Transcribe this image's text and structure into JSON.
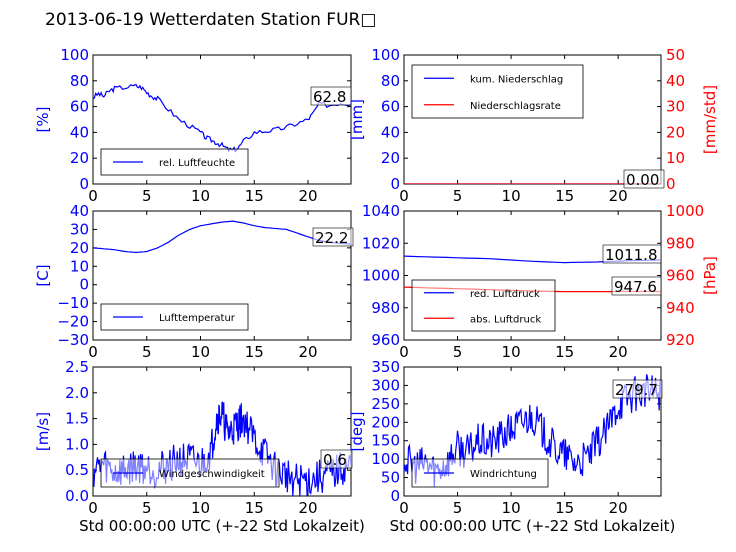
{
  "title": "2013-06-19 Wetterdaten Station FUR□",
  "colors": {
    "left_axis": "#0000ff",
    "right_axis": "#ff0000",
    "series_blue": "#0000ff",
    "series_red": "#ff0000",
    "axes": "#000000"
  },
  "chart_data": [
    {
      "id": "humidity",
      "type": "line",
      "ylabel": "[%]",
      "xlabel": "",
      "xlim": [
        0,
        24
      ],
      "ylim": [
        0,
        100
      ],
      "xticks": [
        "0",
        "5",
        "10",
        "15",
        "20"
      ],
      "yticks": [
        "0",
        "20",
        "40",
        "60",
        "80",
        "100"
      ],
      "legend": {
        "placement": "lower-left",
        "entries": [
          "rel. Luftfeuchte"
        ]
      },
      "annotation": "62.8",
      "series": [
        {
          "name": "rel. Luftfeuchte",
          "color": "#0000ff",
          "x": [
            0,
            0.5,
            1,
            1.5,
            2,
            3,
            4,
            4.5,
            5,
            5.5,
            6,
            7,
            8,
            9,
            10,
            10.5,
            11,
            11.5,
            12,
            12.5,
            13,
            13.5,
            14,
            15,
            16,
            17,
            18,
            19,
            20,
            20.5,
            21,
            22,
            23,
            24
          ],
          "y": [
            67,
            70,
            68,
            72,
            74,
            75,
            76,
            75,
            71,
            68,
            66,
            58,
            50,
            45,
            40,
            36,
            34,
            32,
            30,
            27,
            26,
            28,
            33,
            40,
            41,
            42,
            44,
            47,
            50,
            55,
            62,
            61,
            63,
            62
          ]
        }
      ]
    },
    {
      "id": "precip",
      "type": "line",
      "ylabel": "[mm]",
      "ylabel_right": "[mm/std]",
      "xlim": [
        0,
        24
      ],
      "ylim": [
        0,
        100
      ],
      "ylim_right": [
        0,
        50
      ],
      "xticks": [
        "0",
        "5",
        "10",
        "15",
        "20"
      ],
      "yticks": [
        "0",
        "20",
        "40",
        "60",
        "80",
        "100"
      ],
      "yticks_right": [
        "0",
        "10",
        "20",
        "30",
        "40",
        "50"
      ],
      "legend": {
        "placement": "upper-left",
        "entries": [
          "kum. Niederschlag",
          "Niederschlagsrate"
        ]
      },
      "annotation": "0.00",
      "series": [
        {
          "name": "kum. Niederschlag",
          "color": "#0000ff",
          "axis": "left",
          "x": [
            0,
            24
          ],
          "y": [
            0,
            0
          ]
        },
        {
          "name": "Niederschlagsrate",
          "color": "#ff0000",
          "axis": "right",
          "x": [
            0,
            24
          ],
          "y": [
            0,
            0
          ]
        }
      ]
    },
    {
      "id": "temperature",
      "type": "line",
      "ylabel": "[C]",
      "xlim": [
        0,
        24
      ],
      "ylim": [
        -30,
        40
      ],
      "xticks": [
        "0",
        "5",
        "10",
        "15",
        "20"
      ],
      "yticks": [
        "−30",
        "−20",
        "−10",
        "0",
        "10",
        "20",
        "30",
        "40"
      ],
      "legend": {
        "placement": "lower-left",
        "entries": [
          "Lufttemperatur"
        ]
      },
      "annotation": "22.2",
      "series": [
        {
          "name": "Lufttemperatur",
          "color": "#0000ff",
          "x": [
            0,
            1,
            2,
            3,
            4,
            5,
            6,
            7,
            8,
            9,
            10,
            11,
            12,
            13,
            14,
            15,
            16,
            17,
            18,
            19,
            20,
            21,
            22,
            23,
            24
          ],
          "y": [
            20,
            19.5,
            19,
            18,
            17.5,
            18,
            20,
            23,
            27,
            30,
            32,
            33,
            34,
            34.5,
            33.5,
            32,
            31,
            30.5,
            30,
            28,
            26,
            24,
            23,
            22.5,
            22
          ]
        }
      ]
    },
    {
      "id": "pressure",
      "type": "line",
      "ylabel": "",
      "ylabel_right": "[hPa]",
      "xlim": [
        0,
        24
      ],
      "ylim": [
        950,
        1050
      ],
      "ylim_right": [
        910,
        1010
      ],
      "xticks": [
        "0",
        "5",
        "10",
        "15",
        "20"
      ],
      "yticks": [
        "960",
        "980",
        "1000",
        "1020",
        "1040"
      ],
      "yticks_right": [
        "920",
        "940",
        "960",
        "980",
        "1000"
      ],
      "legend": {
        "placement": "lower-left",
        "entries": [
          "red. Luftdruck",
          "abs. Luftdruck"
        ]
      },
      "annotations": [
        "1011.8",
        "947.6"
      ],
      "series": [
        {
          "name": "red. Luftdruck",
          "color": "#0000ff",
          "axis": "left",
          "x": [
            0,
            4,
            8,
            12,
            15,
            18,
            21,
            24
          ],
          "y": [
            1015,
            1014,
            1013,
            1011,
            1010,
            1010.5,
            1011.5,
            1012
          ]
        },
        {
          "name": "abs. Luftdruck",
          "color": "#ff0000",
          "axis": "right",
          "x": [
            0,
            4,
            8,
            12,
            15,
            18,
            21,
            24
          ],
          "y": [
            951,
            950,
            949,
            948,
            947.5,
            947.5,
            947.6,
            947.6
          ]
        }
      ]
    },
    {
      "id": "wind",
      "type": "line",
      "ylabel": "[m/s]",
      "xlabel": "Std 00:00:00 UTC (+-22 Std Lokalzeit)",
      "xlim": [
        0,
        24
      ],
      "ylim": [
        0,
        2.5
      ],
      "xticks": [
        "0",
        "5",
        "10",
        "15",
        "20"
      ],
      "yticks": [
        "0.0",
        "0.5",
        "1.0",
        "1.5",
        "2.0",
        "2.5"
      ],
      "legend": {
        "placement": "lower-center",
        "entries": [
          "Windgeschwindigkeit"
        ]
      },
      "annotation": "0.6",
      "series": [
        {
          "name": "Windgeschwindigkeit",
          "color": "#0000ff",
          "noisy": true,
          "x": [
            0,
            1,
            2,
            3,
            4,
            5,
            6,
            7,
            8,
            9,
            10,
            11,
            11.5,
            12,
            12.5,
            13,
            13.5,
            14,
            15,
            16,
            17,
            18,
            19,
            20,
            21,
            22,
            23,
            24
          ],
          "y": [
            0.5,
            0.6,
            0.45,
            0.5,
            0.6,
            0.55,
            0.5,
            0.6,
            0.7,
            0.7,
            0.6,
            0.9,
            1.5,
            1.6,
            1.2,
            1.3,
            1.4,
            1.5,
            1.1,
            0.8,
            0.5,
            0.4,
            0.3,
            0.3,
            0.35,
            0.4,
            0.5,
            0.6
          ]
        }
      ]
    },
    {
      "id": "direction",
      "type": "line",
      "ylabel": "[deg]",
      "xlabel": "Std 00:00:00 UTC (+-22 Std Lokalzeit)",
      "xlim": [
        0,
        24
      ],
      "ylim": [
        0,
        350
      ],
      "xticks": [
        "0",
        "5",
        "10",
        "15",
        "20"
      ],
      "yticks": [
        "0",
        "50",
        "100",
        "150",
        "200",
        "250",
        "300",
        "350"
      ],
      "legend": {
        "placement": "lower-left",
        "entries": [
          "Windrichtung"
        ]
      },
      "annotation": "279.7",
      "series": [
        {
          "name": "Windrichtung",
          "color": "#0000ff",
          "noisy": true,
          "x": [
            0,
            1,
            2,
            3,
            4,
            5,
            6,
            7,
            8,
            9,
            10,
            11,
            12,
            13,
            14,
            15,
            16,
            17,
            18,
            19,
            20,
            21,
            22,
            23,
            24
          ],
          "y": [
            100,
            80,
            90,
            70,
            90,
            130,
            120,
            150,
            140,
            160,
            180,
            200,
            220,
            170,
            130,
            110,
            90,
            100,
            140,
            180,
            250,
            270,
            280,
            285,
            280
          ]
        }
      ]
    }
  ]
}
